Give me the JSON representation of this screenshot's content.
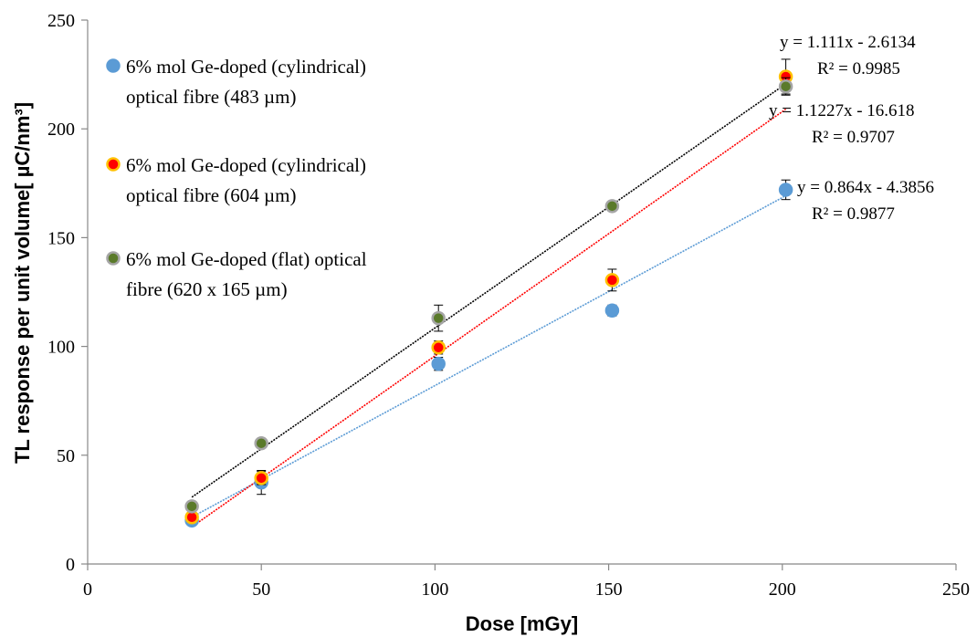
{
  "chart_data": {
    "type": "scatter",
    "xlabel": "Dose [mGy]",
    "ylabel": "TL response per unit volume[ µC/nm³]",
    "xlim": [
      0,
      250
    ],
    "ylim": [
      0,
      250
    ],
    "xticks": [
      0,
      50,
      100,
      150,
      200,
      250
    ],
    "yticks": [
      0,
      50,
      100,
      150,
      200,
      250
    ],
    "grid": false,
    "legend_position": "top-left",
    "series": [
      {
        "name_lines": [
          "6% mol Ge-doped (cylindrical)",
          "optical fibre (483 µm)"
        ],
        "color": "#5b9bd5",
        "edge": "#5b9bd5",
        "line_color": "#5b9bd5",
        "x": [
          30,
          50,
          101,
          151,
          201
        ],
        "y": [
          20.0,
          37.5,
          92.0,
          116.5,
          172.0
        ],
        "err": [
          1.5,
          5.5,
          3.0,
          2.5,
          4.5
        ],
        "fit": {
          "slope": 0.864,
          "intercept": -4.3856
        },
        "equation": "y = 0.864x - 4.3856",
        "r2": "R² = 0.9877"
      },
      {
        "name_lines": [
          "6% mol Ge-doped (cylindrical)",
          "optical fibre (604 µm)"
        ],
        "color": "#ff0000",
        "edge": "#ffc000",
        "line_color": "#ff0000",
        "x": [
          30,
          50,
          101,
          151,
          201
        ],
        "y": [
          21.5,
          39.5,
          99.5,
          130.5,
          224.0
        ],
        "err": [
          1.5,
          3.0,
          3.0,
          5.0,
          8.0
        ],
        "fit": {
          "slope": 1.1227,
          "intercept": -16.618
        },
        "equation": "y = 1.1227x - 16.618",
        "r2": "R² = 0.9707"
      },
      {
        "name_lines": [
          "6% mol Ge-doped (flat) optical",
          "fibre (620 x 165 µm)"
        ],
        "color": "#5a7a2a",
        "edge": "#a5a5a5",
        "line_color": "#000000",
        "x": [
          30,
          50,
          101,
          151,
          201
        ],
        "y": [
          26.5,
          55.5,
          113.0,
          164.5,
          219.5
        ],
        "err": [
          1.5,
          2.0,
          6.0,
          1.5,
          4.0
        ],
        "fit": {
          "slope": 1.111,
          "intercept": -2.6134
        },
        "equation": "y = 1.111x - 2.6134",
        "r2": "R² = 0.9985"
      }
    ]
  }
}
